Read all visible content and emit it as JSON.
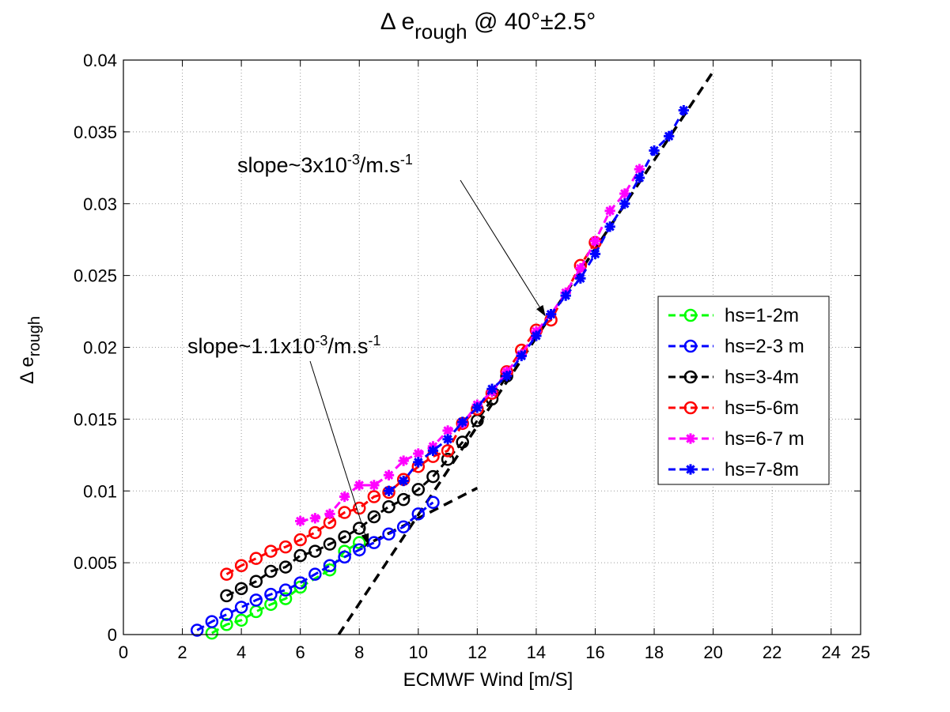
{
  "chart_data": {
    "type": "line",
    "title": {
      "prefix": "Δ e",
      "sub": "rough",
      "suffix": " @ 40°±2.5°"
    },
    "xlabel": "ECMWF Wind [m/S]",
    "ylabel": {
      "prefix": "Δ e",
      "sub": "rough"
    },
    "xlim": [
      0,
      25
    ],
    "ylim": [
      0,
      0.04
    ],
    "xticks": [
      0,
      2,
      4,
      6,
      8,
      10,
      12,
      14,
      16,
      18,
      20,
      22,
      24,
      25
    ],
    "yticks": [
      0,
      0.005,
      0.01,
      0.015,
      0.02,
      0.025,
      0.03,
      0.035,
      0.04
    ],
    "xtick_labels": [
      "0",
      "2",
      "4",
      "6",
      "8",
      "10",
      "12",
      "14",
      "16",
      "18",
      "20",
      "22",
      "24",
      "25"
    ],
    "ytick_labels": [
      "0",
      "0.005",
      "0.01",
      "0.015",
      "0.02",
      "0.025",
      "0.03",
      "0.035",
      "0.04"
    ],
    "grid": true,
    "legend_position": "right",
    "series": [
      {
        "name": "hs=1-2m",
        "color": "#00ff00",
        "marker": "o",
        "x": [
          3,
          3.5,
          4,
          4.5,
          5,
          5.5,
          6,
          7,
          7.5,
          8
        ],
        "y": [
          0.0001,
          0.0007,
          0.001,
          0.0016,
          0.0021,
          0.0025,
          0.0033,
          0.0045,
          0.0058,
          0.0064
        ]
      },
      {
        "name": "hs=2-3 m",
        "color": "#0000ff",
        "marker": "o",
        "x": [
          2.5,
          3,
          3.5,
          4,
          4.5,
          5,
          5.5,
          6,
          6.5,
          7,
          7.5,
          8,
          8.5,
          9,
          9.5,
          10,
          10.5
        ],
        "y": [
          0.0003,
          0.0009,
          0.0014,
          0.0019,
          0.0024,
          0.0028,
          0.0031,
          0.0036,
          0.0042,
          0.0048,
          0.0054,
          0.0059,
          0.0064,
          0.007,
          0.0075,
          0.0084,
          0.0092
        ]
      },
      {
        "name": "hs=3-4m",
        "color": "#000000",
        "marker": "o",
        "x": [
          3.5,
          4,
          4.5,
          5,
          5.5,
          6,
          6.5,
          7,
          7.5,
          8,
          8.5,
          9,
          9.5,
          10,
          10.5,
          11,
          11.5,
          12,
          12.5,
          13
        ],
        "y": [
          0.0027,
          0.0032,
          0.0037,
          0.0044,
          0.0047,
          0.0055,
          0.0058,
          0.0063,
          0.0068,
          0.0074,
          0.0082,
          0.0089,
          0.0094,
          0.0101,
          0.011,
          0.0122,
          0.0134,
          0.0149,
          0.0164,
          0.018
        ]
      },
      {
        "name": "hs=5-6m",
        "color": "#ff0000",
        "marker": "o",
        "x": [
          3.5,
          4,
          4.5,
          5,
          5.5,
          6,
          6.5,
          7,
          7.5,
          8,
          8.5,
          9,
          9.5,
          10,
          10.5,
          11,
          11.5,
          12,
          12.5,
          13,
          13.5,
          14,
          14.5,
          15.5,
          16
        ],
        "y": [
          0.0042,
          0.0048,
          0.0053,
          0.0058,
          0.0061,
          0.0066,
          0.0071,
          0.0078,
          0.0085,
          0.0088,
          0.0096,
          0.0099,
          0.0108,
          0.0117,
          0.0124,
          0.0128,
          0.0147,
          0.0157,
          0.0168,
          0.0183,
          0.0198,
          0.0212,
          0.0219,
          0.0257,
          0.0273
        ]
      },
      {
        "name": "hs=6-7 m",
        "color": "#ff00ff",
        "marker": "*",
        "x": [
          6,
          6.5,
          7,
          7.5,
          8,
          8.5,
          9,
          9.5,
          10,
          10.5,
          11,
          11.5,
          12,
          12.5,
          13,
          13.5,
          14,
          14.5,
          15,
          15.5,
          16,
          16.5,
          17,
          17.5
        ],
        "y": [
          0.0079,
          0.0081,
          0.0084,
          0.0096,
          0.0104,
          0.0104,
          0.0111,
          0.0121,
          0.0126,
          0.0131,
          0.0142,
          0.0147,
          0.016,
          0.0169,
          0.0183,
          0.0195,
          0.0211,
          0.0223,
          0.0238,
          0.0255,
          0.0274,
          0.0295,
          0.0307,
          0.0324
        ]
      },
      {
        "name": "hs=7-8m",
        "color": "#0000ff",
        "marker": "*",
        "x": [
          9,
          9.5,
          10,
          10.5,
          11,
          11.5,
          12,
          12.5,
          13,
          13.5,
          14,
          14.5,
          15,
          15.5,
          16,
          16.5,
          17,
          17.5,
          18,
          18.5,
          19
        ],
        "y": [
          0.01,
          0.0107,
          0.012,
          0.0128,
          0.0136,
          0.0148,
          0.0158,
          0.0171,
          0.018,
          0.0194,
          0.0208,
          0.0223,
          0.0236,
          0.0248,
          0.0265,
          0.0284,
          0.03,
          0.0318,
          0.0337,
          0.0347,
          0.0365
        ]
      }
    ],
    "fit_lines": [
      {
        "x": [
          7.3,
          20
        ],
        "y": [
          0,
          0.0392
        ]
      },
      {
        "x": [
          8,
          12
        ],
        "y": [
          0.006,
          0.0102
        ]
      }
    ],
    "annotations": [
      {
        "text_main": "slope~3x10",
        "text_sup": "-3",
        "text_unit": "/m.s",
        "text_sup2": "-1",
        "arrow_to": [
          14.3,
          0.0222
        ]
      },
      {
        "text_main": "slope~1.1x10",
        "text_sup": "-3",
        "text_unit": "/m.s",
        "text_sup2": "-1",
        "arrow_to": [
          8.3,
          0.0063
        ]
      }
    ]
  }
}
